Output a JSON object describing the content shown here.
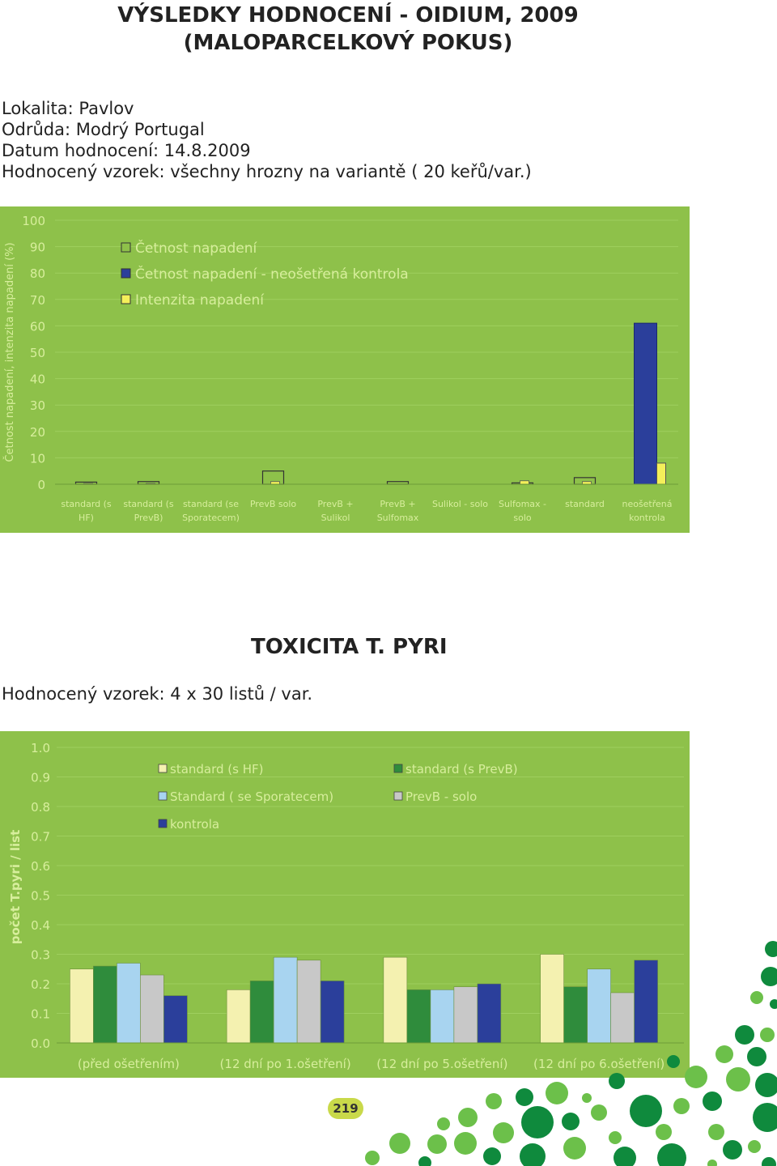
{
  "title_line1": "VÝSLEDKY HODNOCENÍ - OIDIUM, 2009",
  "title_line2": "(MALOPARCELKOVÝ POKUS)",
  "info": [
    "Lokalita: Pavlov",
    "Odrůda: Modrý Portugal",
    "Datum hodnocení: 14.8.2009",
    "Hodnocený vzorek: všechny hrozny na variantě ( 20 keřů/var.)"
  ],
  "toxicity_title": "TOXICITA T. PYRI",
  "sample2": "Hodnocený vzorek: 4 x 30 listů / var.",
  "page_number": "219",
  "colors": {
    "plot_bg": "#8ec14a",
    "gridline": "#9fcf5e",
    "tick_text": "#d7ee9c",
    "frequency": "#8ec14a",
    "frequency_control": "#2b3f9b",
    "intensity": "#f4ef5a",
    "standard_hf": "#f4f1b0",
    "standard_prevb": "#2f8c3c",
    "standard_sporatec": "#a8d4f0",
    "prevb_solo": "#c8c8c8",
    "kontrola": "#2b3f9b",
    "deco_dark": "#0f8a3d",
    "deco_light": "#6cc04a"
  },
  "chart_data": [
    {
      "type": "bar",
      "title": "",
      "ylabel": "Četnost napadení, intenzita napadení (%)",
      "xlabel": "",
      "ylim": [
        0,
        100
      ],
      "yticks": [
        0,
        10,
        20,
        30,
        40,
        50,
        60,
        70,
        80,
        90,
        100
      ],
      "grid": true,
      "legend_position": "top-left",
      "categories": [
        [
          "standard (s",
          "HF)"
        ],
        [
          "standard (s",
          "PrevB)"
        ],
        [
          "standard (se",
          "Sporatecem)"
        ],
        [
          "PrevB solo"
        ],
        [
          "PrevB +",
          "Sulikol"
        ],
        [
          "PrevB +",
          "Sulfomax"
        ],
        [
          "Sulikol - solo"
        ],
        [
          "Sulfomax -",
          "solo"
        ],
        [
          "standard"
        ],
        [
          "neošetřená",
          "kontrola"
        ]
      ],
      "series": [
        {
          "name": "Četnost napadení",
          "values": [
            0.8,
            1.0,
            0,
            5.0,
            0,
            1.0,
            0,
            0.5,
            2.5,
            null
          ]
        },
        {
          "name": "Četnost napadení - neošetřená kontrola",
          "values": [
            null,
            null,
            null,
            null,
            null,
            null,
            null,
            null,
            null,
            61
          ]
        },
        {
          "name": "Intenzita napadení",
          "values": [
            0.3,
            0.3,
            0,
            1.0,
            0,
            0,
            0,
            1.3,
            1.0,
            8
          ]
        }
      ]
    },
    {
      "type": "bar",
      "title": "",
      "ylabel": "počet T.pyri / list",
      "xlabel": "",
      "ylim": [
        0,
        1.0
      ],
      "yticks": [
        0.0,
        0.1,
        0.2,
        0.3,
        0.4,
        0.5,
        0.6,
        0.7,
        0.8,
        0.9,
        1.0
      ],
      "grid": true,
      "legend_position": "top",
      "categories": [
        "(před ošetřením)",
        "(12 dní po 1.ošetření)",
        "(12 dní po 5.ošetření)",
        "(12 dní po 6.ošetření)"
      ],
      "series": [
        {
          "name": "standard (s HF)",
          "values": [
            0.25,
            0.18,
            0.29,
            0.3
          ]
        },
        {
          "name": "standard (s PrevB)",
          "values": [
            0.26,
            0.21,
            0.18,
            0.19
          ]
        },
        {
          "name": "Standard ( se Sporatecem)",
          "values": [
            0.27,
            0.29,
            0.18,
            0.25
          ]
        },
        {
          "name": "PrevB - solo",
          "values": [
            0.23,
            0.28,
            0.19,
            0.17
          ]
        },
        {
          "name": "kontrola",
          "values": [
            0.16,
            0.21,
            0.2,
            0.28
          ]
        }
      ]
    }
  ]
}
